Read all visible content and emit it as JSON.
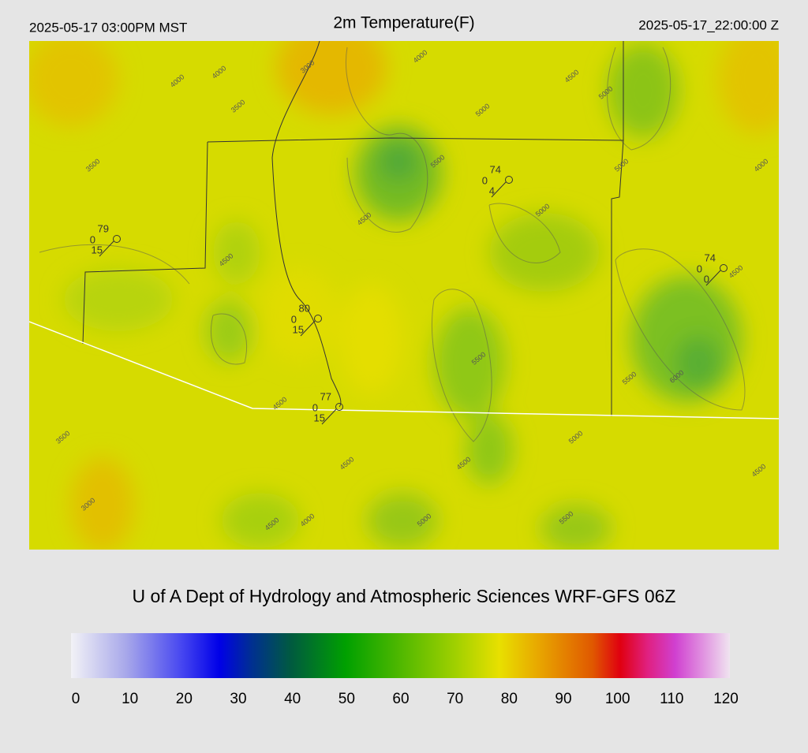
{
  "header": {
    "local_time": "2025-05-17 03:00PM MST",
    "title": "2m Temperature(F)",
    "utc_time": "2025-05-17_22:00:00 Z"
  },
  "credit": "U of A Dept of Hydrology and Atmospheric Sciences WRF-GFS 06Z",
  "colorbar": {
    "range": [
      0,
      120
    ],
    "ticks": [
      0,
      10,
      20,
      30,
      40,
      50,
      60,
      70,
      80,
      90,
      100,
      110,
      120
    ],
    "stops": [
      {
        "value": 0,
        "color": "#f2f2f6"
      },
      {
        "value": 10,
        "color": "#a8a8ea"
      },
      {
        "value": 20,
        "color": "#4848f0"
      },
      {
        "value": 27,
        "color": "#0000e8"
      },
      {
        "value": 33,
        "color": "#003090"
      },
      {
        "value": 40,
        "color": "#005a40"
      },
      {
        "value": 50,
        "color": "#00a000"
      },
      {
        "value": 60,
        "color": "#50b800"
      },
      {
        "value": 70,
        "color": "#a0d000"
      },
      {
        "value": 78,
        "color": "#e8e000"
      },
      {
        "value": 85,
        "color": "#e8a800"
      },
      {
        "value": 95,
        "color": "#e05800"
      },
      {
        "value": 100,
        "color": "#e00010"
      },
      {
        "value": 105,
        "color": "#e02080"
      },
      {
        "value": 110,
        "color": "#d040d0"
      },
      {
        "value": 115,
        "color": "#e090e0"
      },
      {
        "value": 120,
        "color": "#f0e4f0"
      }
    ]
  },
  "stations": [
    {
      "temp": 79,
      "dew": 0,
      "wind": 15
    },
    {
      "temp": 74,
      "dew": 0,
      "wind": 4
    },
    {
      "temp": 74,
      "dew": 0,
      "wind": 0
    },
    {
      "temp": 80,
      "dew": 0,
      "wind": 15
    },
    {
      "temp": 77,
      "dew": 0,
      "wind": 15
    }
  ],
  "contour_labels": [
    4000,
    4000,
    3000,
    3500,
    3500,
    4000,
    4500,
    5000,
    5500,
    5000,
    5000,
    5000,
    4000,
    4500,
    4500,
    5500,
    5500,
    6000,
    4500,
    4500,
    5000,
    4500,
    4500,
    3500,
    3000,
    4500,
    4000,
    5000,
    5500,
    4500
  ]
}
